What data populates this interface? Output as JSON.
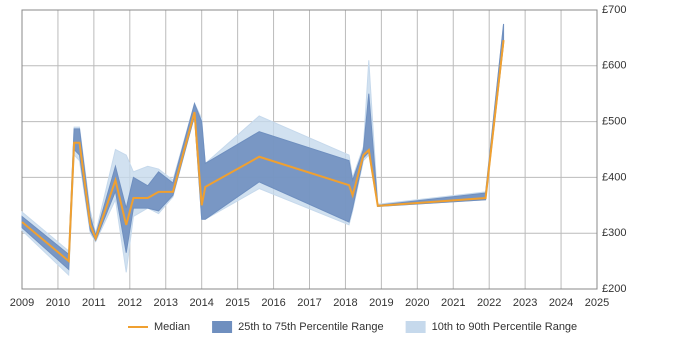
{
  "chart_data": {
    "type": "band-line",
    "x": [
      2009.0,
      2010.3,
      2010.45,
      2010.6,
      2010.9,
      2011.05,
      2011.6,
      2011.9,
      2012.1,
      2012.5,
      2012.8,
      2013.2,
      2013.8,
      2014.0,
      2014.1,
      2015.6,
      2018.1,
      2018.2,
      2018.5,
      2018.65,
      2018.9,
      2021.9,
      2022.4
    ],
    "series": [
      {
        "name": "10th to 90th Percentile Range",
        "color": "#c6d9ec",
        "low": [
          305,
          225,
          440,
          430,
          300,
          285,
          360,
          230,
          330,
          345,
          335,
          365,
          510,
          325,
          325,
          380,
          315,
          340,
          430,
          440,
          348,
          360,
          640
        ],
        "high": [
          338,
          268,
          490,
          490,
          340,
          300,
          450,
          440,
          410,
          420,
          415,
          395,
          533,
          505,
          425,
          510,
          440,
          400,
          455,
          610,
          352,
          374,
          675
        ]
      },
      {
        "name": "25th to 75th Percentile Range",
        "color": "#6f8fbf",
        "low": [
          310,
          235,
          450,
          440,
          305,
          287,
          375,
          265,
          345,
          345,
          340,
          368,
          510,
          325,
          325,
          392,
          320,
          345,
          435,
          445,
          348,
          360,
          640
        ],
        "high": [
          330,
          262,
          487,
          487,
          330,
          296,
          420,
          345,
          400,
          385,
          410,
          390,
          532,
          500,
          425,
          482,
          430,
          395,
          450,
          550,
          350,
          372,
          675
        ]
      },
      {
        "name": "Median",
        "color": "#f0a030",
        "values": [
          320,
          250,
          462,
          462,
          315,
          291,
          395,
          315,
          363,
          363,
          374,
          374,
          517,
          350,
          383,
          437,
          386,
          368,
          440,
          449,
          349,
          363,
          646
        ]
      }
    ],
    "xlim": [
      2009,
      2025
    ],
    "xticks": [
      2009,
      2010,
      2011,
      2012,
      2013,
      2014,
      2015,
      2016,
      2017,
      2018,
      2019,
      2020,
      2021,
      2022,
      2023,
      2024,
      2025
    ],
    "ylim": [
      200,
      700
    ],
    "yticks": [
      {
        "value": 200,
        "label": "£200"
      },
      {
        "value": 300,
        "label": "£300"
      },
      {
        "value": 400,
        "label": "£400"
      },
      {
        "value": 500,
        "label": "£500"
      },
      {
        "value": 600,
        "label": "£600"
      },
      {
        "value": 700,
        "label": "£700"
      }
    ],
    "grid": true
  }
}
